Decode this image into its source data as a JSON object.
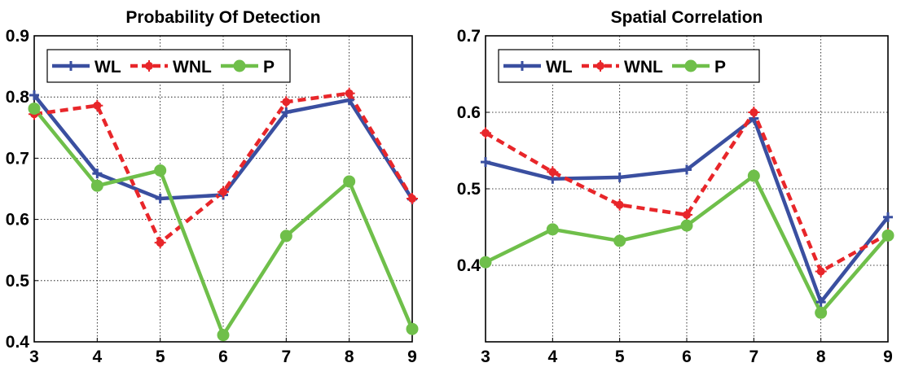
{
  "chart_data": [
    {
      "type": "line",
      "title": "Probability Of Detection",
      "xlabel": "",
      "ylabel": "",
      "x": [
        3,
        4,
        5,
        6,
        7,
        8,
        9
      ],
      "xlim": [
        3,
        9
      ],
      "ylim": [
        0.4,
        0.9
      ],
      "xticks": [
        "3",
        "4",
        "5",
        "6",
        "7",
        "8",
        "9"
      ],
      "yticks": [
        "0.4",
        "0.5",
        "0.6",
        "0.7",
        "0.8",
        "0.9"
      ],
      "grid": true,
      "legend_position": "top-left",
      "series": [
        {
          "name": "WL",
          "color": "#3a4fa0",
          "style": "solid",
          "marker": "plus",
          "values": [
            0.803,
            0.675,
            0.634,
            0.64,
            0.775,
            0.795,
            0.633
          ]
        },
        {
          "name": "WNL",
          "color": "#e8262a",
          "style": "dashed",
          "marker": "star",
          "values": [
            0.772,
            0.786,
            0.562,
            0.645,
            0.792,
            0.806,
            0.634
          ]
        },
        {
          "name": "P",
          "color": "#6fbf4a",
          "style": "solid",
          "marker": "circle",
          "values": [
            0.781,
            0.655,
            0.68,
            0.411,
            0.573,
            0.662,
            0.421
          ]
        }
      ]
    },
    {
      "type": "line",
      "title": "Spatial Correlation",
      "xlabel": "",
      "ylabel": "",
      "x": [
        3,
        4,
        5,
        6,
        7,
        8,
        9
      ],
      "xlim": [
        3,
        9
      ],
      "ylim": [
        0.3,
        0.7
      ],
      "xticks": [
        "3",
        "4",
        "5",
        "6",
        "7",
        "8",
        "9"
      ],
      "yticks": [
        "0.4",
        "0.5",
        "0.6",
        "0.7"
      ],
      "grid": true,
      "legend_position": "top-left",
      "series": [
        {
          "name": "WL",
          "color": "#3a4fa0",
          "style": "solid",
          "marker": "plus",
          "values": [
            0.535,
            0.513,
            0.515,
            0.525,
            0.592,
            0.352,
            0.463
          ]
        },
        {
          "name": "WNL",
          "color": "#e8262a",
          "style": "dashed",
          "marker": "star",
          "values": [
            0.573,
            0.522,
            0.479,
            0.466,
            0.6,
            0.392,
            0.441
          ]
        },
        {
          "name": "P",
          "color": "#6fbf4a",
          "style": "solid",
          "marker": "circle",
          "values": [
            0.404,
            0.447,
            0.432,
            0.452,
            0.517,
            0.338,
            0.439
          ]
        }
      ]
    }
  ]
}
